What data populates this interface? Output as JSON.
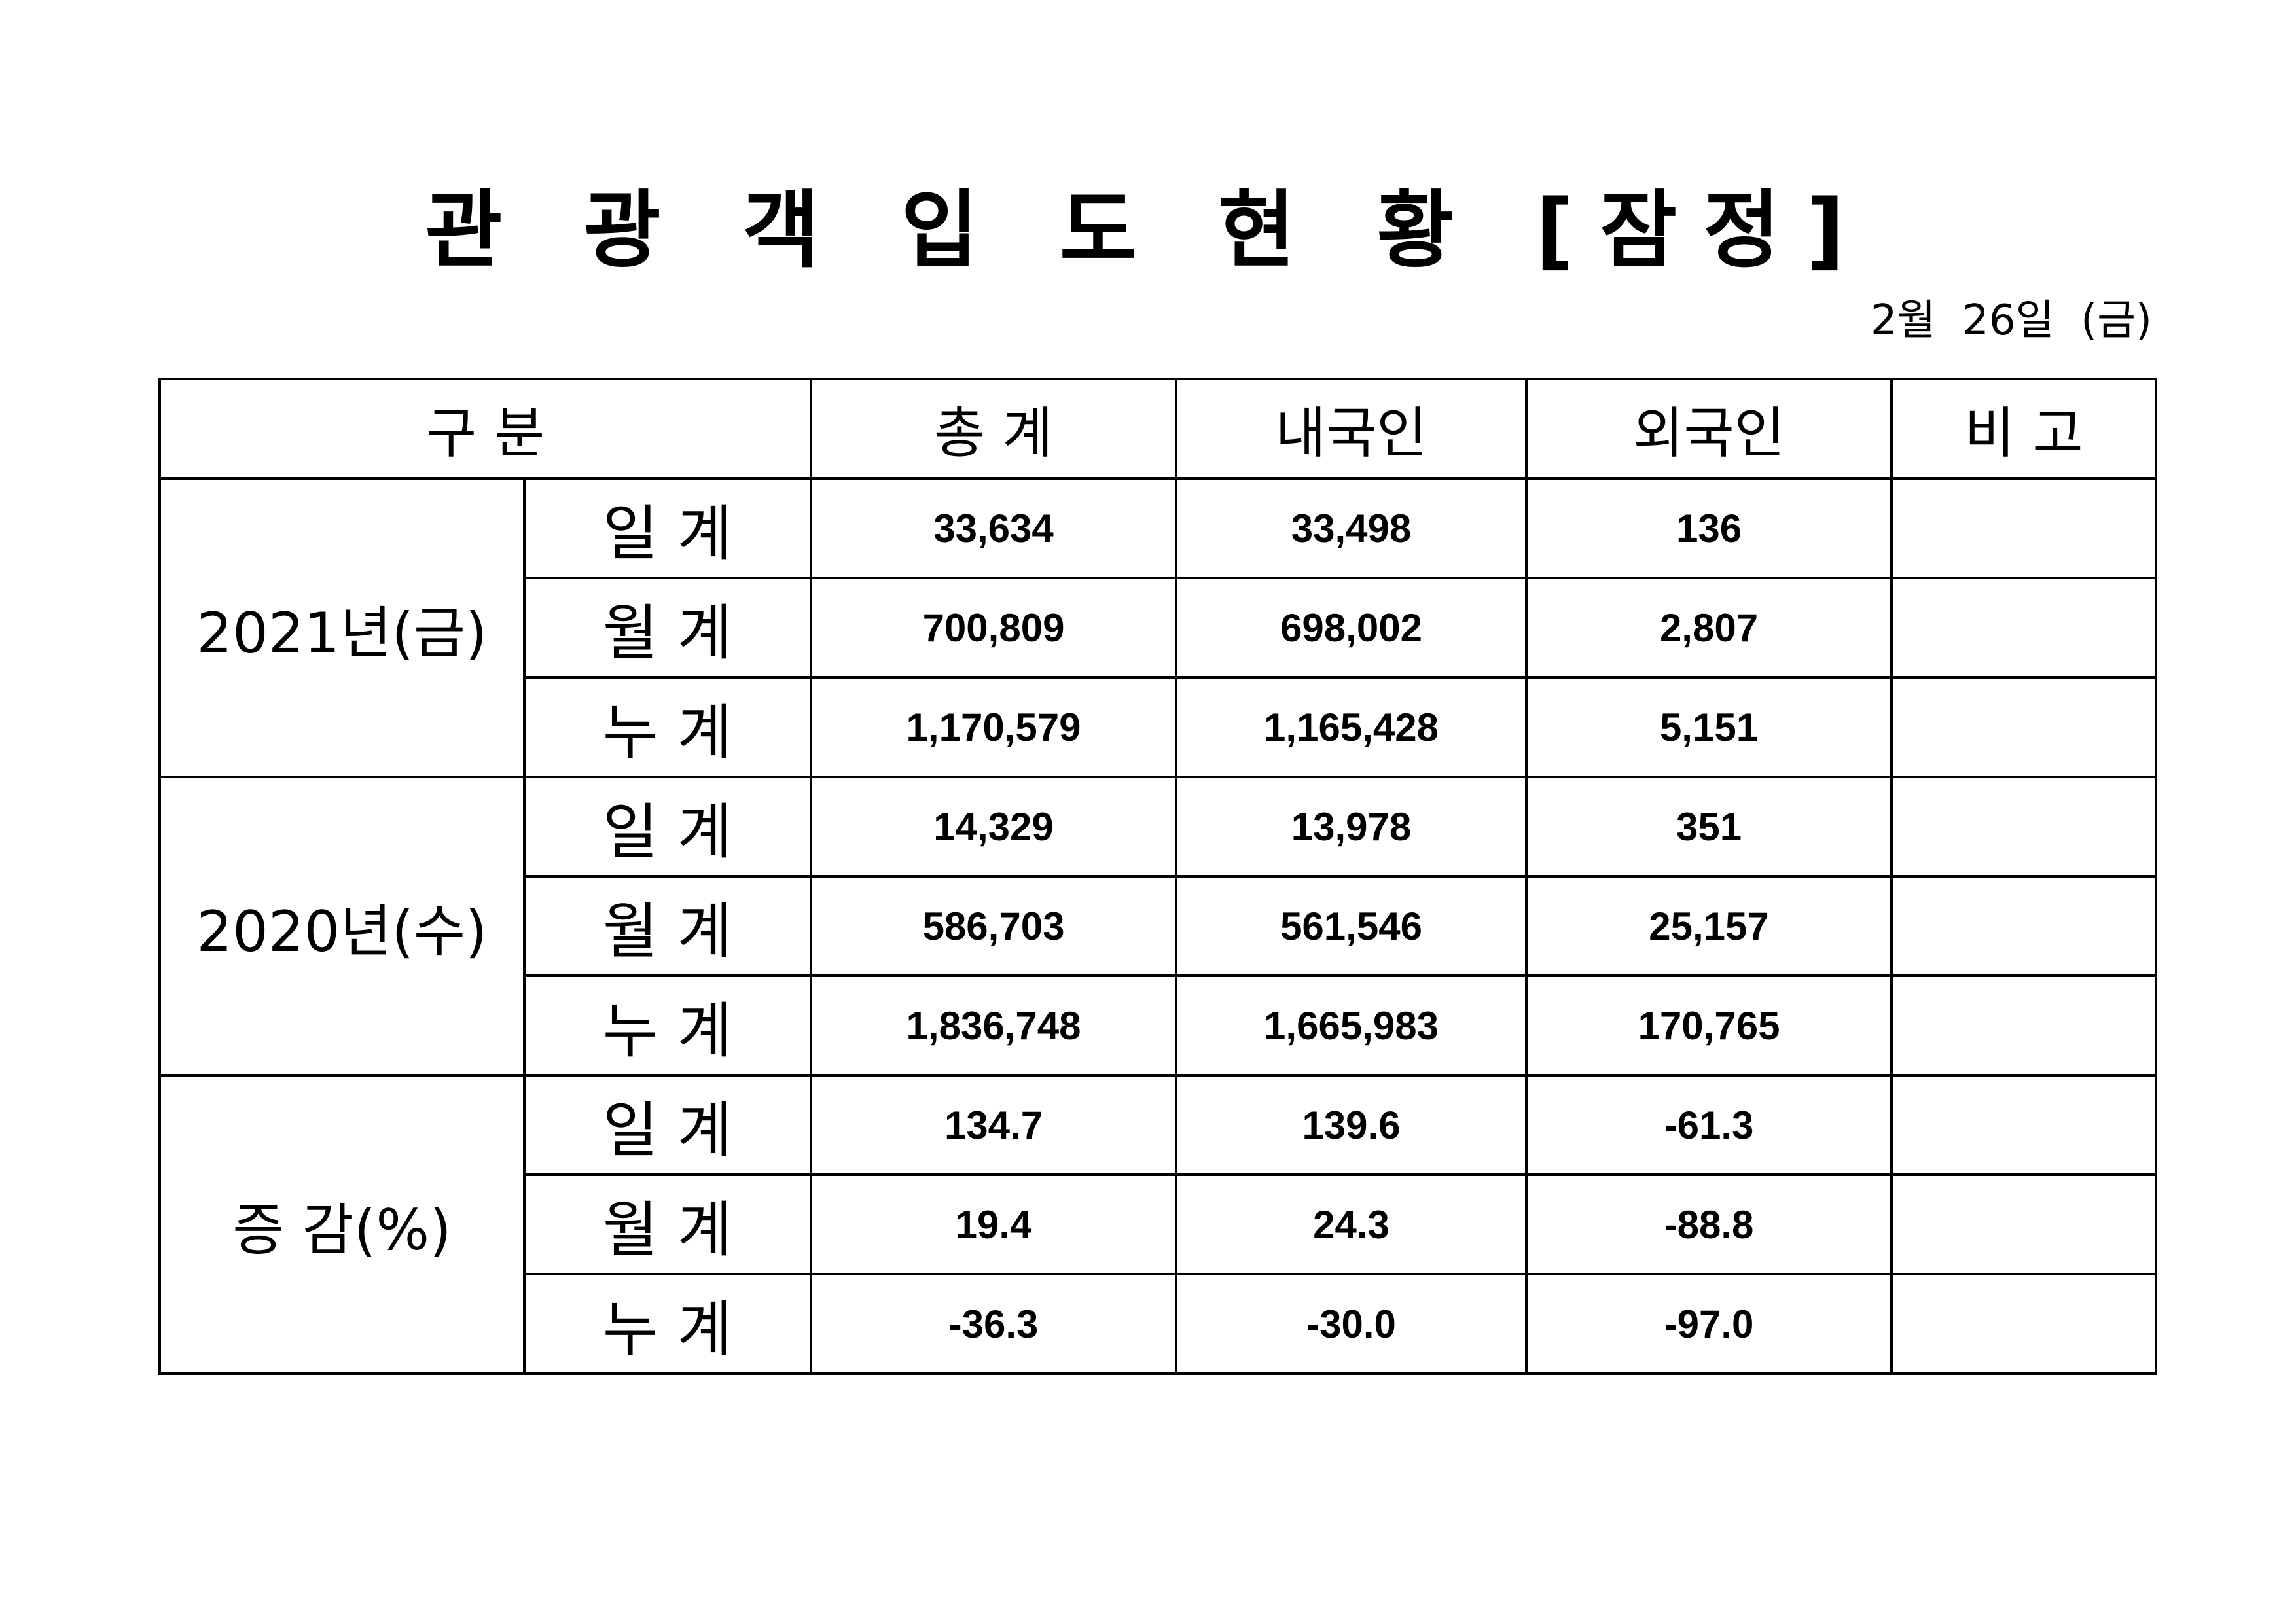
{
  "title": "관 광 객 입 도 현 황 [잠정]",
  "date": "2월  26일  (금)",
  "headers": {
    "category": "구    분",
    "total": "총    계",
    "domestic": "내국인",
    "foreign": "외국인",
    "remarks": "비    고"
  },
  "groups": [
    {
      "label": "2021년(금)",
      "rows": [
        {
          "label": "일  계",
          "total": "33,634",
          "domestic": "33,498",
          "foreign": "136",
          "remarks": ""
        },
        {
          "label": "월  계",
          "total": "700,809",
          "domestic": "698,002",
          "foreign": "2,807",
          "remarks": ""
        },
        {
          "label": "누  계",
          "total": "1,170,579",
          "domestic": "1,165,428",
          "foreign": "5,151",
          "remarks": ""
        }
      ]
    },
    {
      "label": "2020년(수)",
      "rows": [
        {
          "label": "일  계",
          "total": "14,329",
          "domestic": "13,978",
          "foreign": "351",
          "remarks": ""
        },
        {
          "label": "월  계",
          "total": "586,703",
          "domestic": "561,546",
          "foreign": "25,157",
          "remarks": ""
        },
        {
          "label": "누  계",
          "total": "1,836,748",
          "domestic": "1,665,983",
          "foreign": "170,765",
          "remarks": ""
        }
      ]
    },
    {
      "label": "증  감(%)",
      "rows": [
        {
          "label": "일  계",
          "total": "134.7",
          "domestic": "139.6",
          "foreign": "-61.3",
          "remarks": ""
        },
        {
          "label": "월  계",
          "total": "19.4",
          "domestic": "24.3",
          "foreign": "-88.8",
          "remarks": ""
        },
        {
          "label": "누  계",
          "total": "-36.3",
          "domestic": "-30.0",
          "foreign": "-97.0",
          "remarks": ""
        }
      ]
    }
  ]
}
